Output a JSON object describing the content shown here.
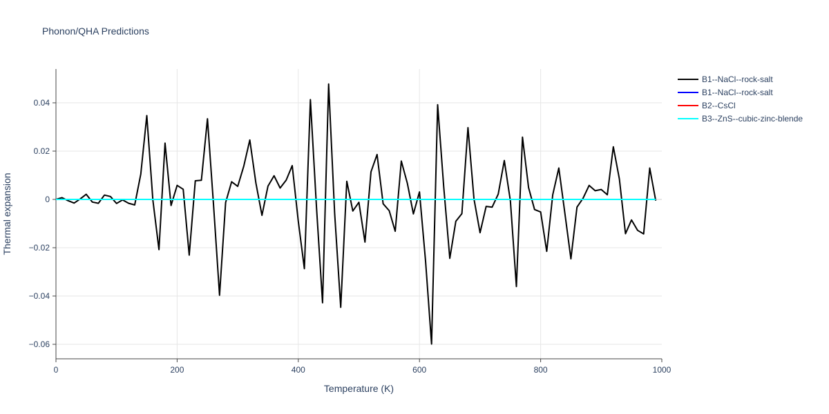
{
  "chart_data": {
    "type": "line",
    "title": "Phonon/QHA Predictions",
    "xlabel": "Temperature (K)",
    "ylabel": "Thermal expansion",
    "xlim": [
      0,
      1000
    ],
    "ylim": [
      -0.066,
      0.054
    ],
    "xticks": [
      0,
      200,
      400,
      600,
      800,
      1000
    ],
    "xtick_labels": [
      "0",
      "200",
      "400",
      "600",
      "800",
      "1000"
    ],
    "yticks": [
      -0.06,
      -0.04,
      -0.02,
      0,
      0.02,
      0.04
    ],
    "ytick_labels": [
      "−0.06",
      "−0.04",
      "−0.02",
      "0",
      "0.02",
      "0.04"
    ],
    "grid": true,
    "legend_position": "top-right, outside plot",
    "series": [
      {
        "name": "B1--NaCl--rock-salt",
        "color": "#000000",
        "x": [
          0,
          10,
          20,
          30,
          40,
          50,
          60,
          70,
          80,
          90,
          100,
          110,
          120,
          130,
          140,
          150,
          160,
          170,
          180,
          190,
          200,
          210,
          220,
          230,
          240,
          250,
          260,
          270,
          280,
          290,
          300,
          310,
          320,
          330,
          340,
          350,
          360,
          370,
          380,
          390,
          400,
          410,
          420,
          430,
          440,
          450,
          460,
          470,
          480,
          490,
          500,
          510,
          520,
          530,
          540,
          550,
          560,
          570,
          580,
          590,
          600,
          610,
          620,
          630,
          640,
          650,
          660,
          670,
          680,
          690,
          700,
          710,
          720,
          730,
          740,
          750,
          760,
          770,
          780,
          790,
          800,
          810,
          820,
          830,
          840,
          850,
          860,
          870,
          880,
          890,
          900,
          910,
          920,
          930,
          940,
          950,
          960,
          970,
          980,
          990
        ],
        "y": [
          0,
          0.0007,
          -0.0005,
          -0.0015,
          0.0002,
          0.0021,
          -0.0011,
          -0.0016,
          0.0018,
          0.0012,
          -0.0017,
          -0.0002,
          -0.0016,
          -0.0023,
          0.0105,
          0.0347,
          -0.0003,
          -0.0208,
          0.0233,
          -0.0025,
          0.0058,
          0.0042,
          -0.0231,
          0.0077,
          0.0079,
          0.0334,
          -0.0019,
          -0.0397,
          -0.0013,
          0.0073,
          0.0054,
          0.0138,
          0.0246,
          0.0068,
          -0.0066,
          0.0055,
          0.0098,
          0.0047,
          0.008,
          0.014,
          -0.0091,
          -0.0287,
          0.0413,
          -0.0031,
          -0.0428,
          0.0478,
          -0.0057,
          -0.0447,
          0.0075,
          -0.0048,
          -0.0012,
          -0.0177,
          0.0114,
          0.0186,
          -0.0018,
          -0.0047,
          -0.0132,
          0.0159,
          0.0066,
          -0.006,
          0.0031,
          -0.0255,
          -0.0599,
          0.0392,
          0.0052,
          -0.0244,
          -0.0091,
          -0.0059,
          0.0297,
          0.0002,
          -0.0138,
          -0.0029,
          -0.0032,
          0.0022,
          0.0161,
          -0.0006,
          -0.0361,
          0.0258,
          0.0049,
          -0.0042,
          -0.0052,
          -0.0215,
          0.0019,
          0.013,
          -0.0058,
          -0.0246,
          -0.0032,
          0.0005,
          0.0058,
          0.0036,
          0.0041,
          0.0019,
          0.0218,
          0.0084,
          -0.0142,
          -0.0085,
          -0.0128,
          -0.0143,
          0.013,
          -0.0005
        ]
      },
      {
        "name": "B1--NaCl--rock-salt",
        "color": "#0000ff",
        "x": [
          0,
          990
        ],
        "y": [
          0,
          0
        ]
      },
      {
        "name": "B2--CsCl",
        "color": "#ff0000",
        "x": [
          0,
          990
        ],
        "y": [
          0,
          0
        ]
      },
      {
        "name": "B3--ZnS--cubic-zinc-blende",
        "color": "#00ffff",
        "x": [
          0,
          990
        ],
        "y": [
          0,
          0
        ]
      }
    ]
  }
}
